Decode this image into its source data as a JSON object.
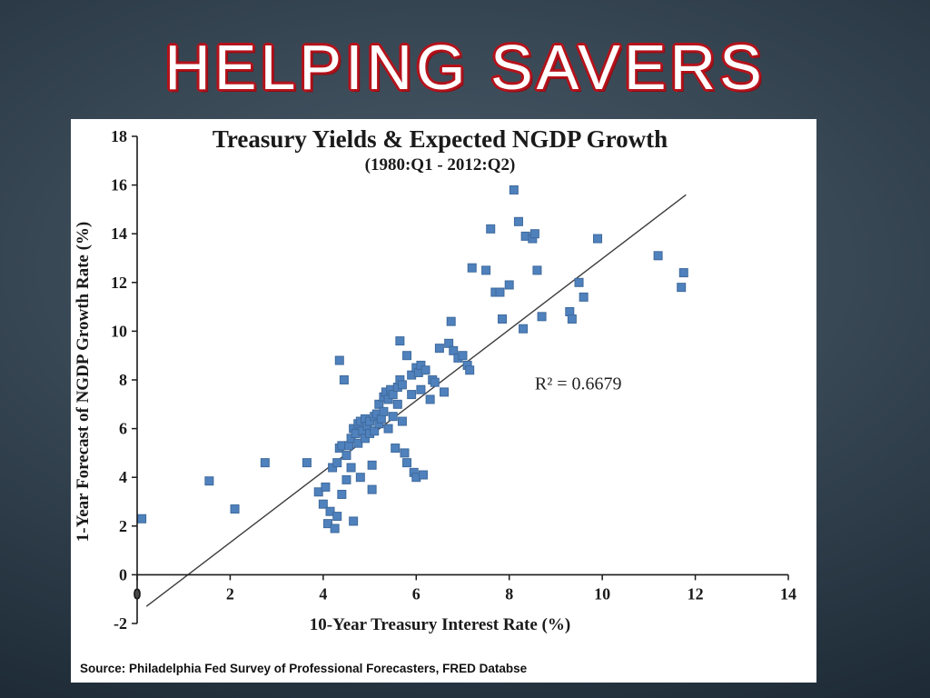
{
  "slide": {
    "title": "HELPING SAVERS",
    "source_text": "Source: Philadelphia Fed Survey of Professional Forecasters, FRED Databse"
  },
  "chart_data": {
    "type": "scatter",
    "title": "Treasury Yields & Expected NGDP Growth",
    "subtitle": "(1980:Q1 - 2012:Q2)",
    "xlabel": "10-Year Treasury Interest Rate (%)",
    "ylabel": "1-Year Forecast of NGDP Growth Rate (%)",
    "xlim": [
      0,
      14
    ],
    "ylim": [
      -2,
      18
    ],
    "xticks": [
      0,
      2,
      4,
      6,
      8,
      10,
      12,
      14
    ],
    "yticks": [
      -2,
      0,
      2,
      4,
      6,
      8,
      10,
      12,
      14,
      16,
      18
    ],
    "grid": false,
    "legend": "none",
    "marker_color": "#4f81bd",
    "marker_edge_color": "#3f6a9c",
    "annotation": {
      "text": "R² = 0.6679",
      "x": 8.55,
      "y": 7.6
    },
    "trendline": {
      "x1": 0.2,
      "y1": -1.3,
      "x2": 11.8,
      "y2": 15.6
    },
    "points": [
      [
        0.1,
        2.3
      ],
      [
        1.55,
        3.85
      ],
      [
        2.1,
        2.7
      ],
      [
        2.75,
        4.6
      ],
      [
        3.65,
        4.6
      ],
      [
        3.9,
        3.4
      ],
      [
        4.0,
        2.9
      ],
      [
        4.05,
        3.6
      ],
      [
        4.1,
        2.1
      ],
      [
        4.15,
        2.6
      ],
      [
        4.2,
        4.4
      ],
      [
        4.25,
        1.9
      ],
      [
        4.3,
        2.4
      ],
      [
        4.3,
        4.6
      ],
      [
        4.35,
        8.8
      ],
      [
        4.35,
        5.2
      ],
      [
        4.4,
        3.3
      ],
      [
        4.4,
        5.3
      ],
      [
        4.45,
        8.0
      ],
      [
        4.5,
        3.9
      ],
      [
        4.5,
        4.9
      ],
      [
        4.55,
        5.3
      ],
      [
        4.6,
        4.4
      ],
      [
        4.6,
        5.6
      ],
      [
        4.65,
        2.2
      ],
      [
        4.65,
        6.0
      ],
      [
        4.7,
        5.8
      ],
      [
        4.75,
        5.4
      ],
      [
        4.75,
        6.2
      ],
      [
        4.8,
        4.0
      ],
      [
        4.8,
        6.3
      ],
      [
        4.85,
        5.9
      ],
      [
        4.9,
        5.6
      ],
      [
        4.9,
        6.4
      ],
      [
        4.95,
        6.1
      ],
      [
        5.0,
        5.8
      ],
      [
        5.0,
        6.3
      ],
      [
        5.05,
        4.5
      ],
      [
        5.05,
        3.5
      ],
      [
        5.1,
        5.9
      ],
      [
        5.1,
        6.5
      ],
      [
        5.15,
        6.6
      ],
      [
        5.2,
        6.2
      ],
      [
        5.2,
        7.0
      ],
      [
        5.25,
        6.4
      ],
      [
        5.3,
        6.7
      ],
      [
        5.3,
        7.3
      ],
      [
        5.35,
        7.5
      ],
      [
        5.4,
        6.0
      ],
      [
        5.4,
        7.2
      ],
      [
        5.45,
        7.6
      ],
      [
        5.5,
        6.5
      ],
      [
        5.5,
        7.4
      ],
      [
        5.55,
        5.2
      ],
      [
        5.6,
        7.0
      ],
      [
        5.6,
        7.7
      ],
      [
        5.65,
        8.0
      ],
      [
        5.65,
        9.6
      ],
      [
        5.7,
        6.3
      ],
      [
        5.7,
        7.8
      ],
      [
        5.75,
        5.0
      ],
      [
        5.8,
        4.6
      ],
      [
        5.8,
        9.0
      ],
      [
        5.9,
        7.4
      ],
      [
        5.9,
        8.2
      ],
      [
        5.95,
        4.2
      ],
      [
        6.0,
        4.0
      ],
      [
        6.0,
        8.5
      ],
      [
        6.05,
        8.3
      ],
      [
        6.1,
        7.6
      ],
      [
        6.1,
        8.6
      ],
      [
        6.15,
        4.1
      ],
      [
        6.2,
        8.4
      ],
      [
        6.3,
        7.2
      ],
      [
        6.35,
        8.0
      ],
      [
        6.4,
        7.9
      ],
      [
        6.5,
        9.3
      ],
      [
        6.6,
        7.5
      ],
      [
        6.7,
        9.5
      ],
      [
        6.75,
        10.4
      ],
      [
        6.8,
        9.2
      ],
      [
        6.9,
        8.9
      ],
      [
        7.0,
        9.0
      ],
      [
        7.1,
        8.6
      ],
      [
        7.15,
        8.4
      ],
      [
        7.2,
        12.6
      ],
      [
        7.5,
        12.5
      ],
      [
        7.6,
        14.2
      ],
      [
        7.7,
        11.6
      ],
      [
        7.8,
        11.6
      ],
      [
        7.85,
        10.5
      ],
      [
        8.0,
        11.9
      ],
      [
        8.1,
        15.8
      ],
      [
        8.2,
        14.5
      ],
      [
        8.3,
        10.1
      ],
      [
        8.35,
        13.9
      ],
      [
        8.5,
        13.8
      ],
      [
        8.55,
        14.0
      ],
      [
        8.6,
        12.5
      ],
      [
        8.7,
        10.6
      ],
      [
        9.3,
        10.8
      ],
      [
        9.35,
        10.5
      ],
      [
        9.5,
        12.0
      ],
      [
        9.6,
        11.4
      ],
      [
        9.9,
        13.8
      ],
      [
        11.2,
        13.1
      ],
      [
        11.7,
        11.8
      ],
      [
        11.75,
        12.4
      ]
    ]
  }
}
